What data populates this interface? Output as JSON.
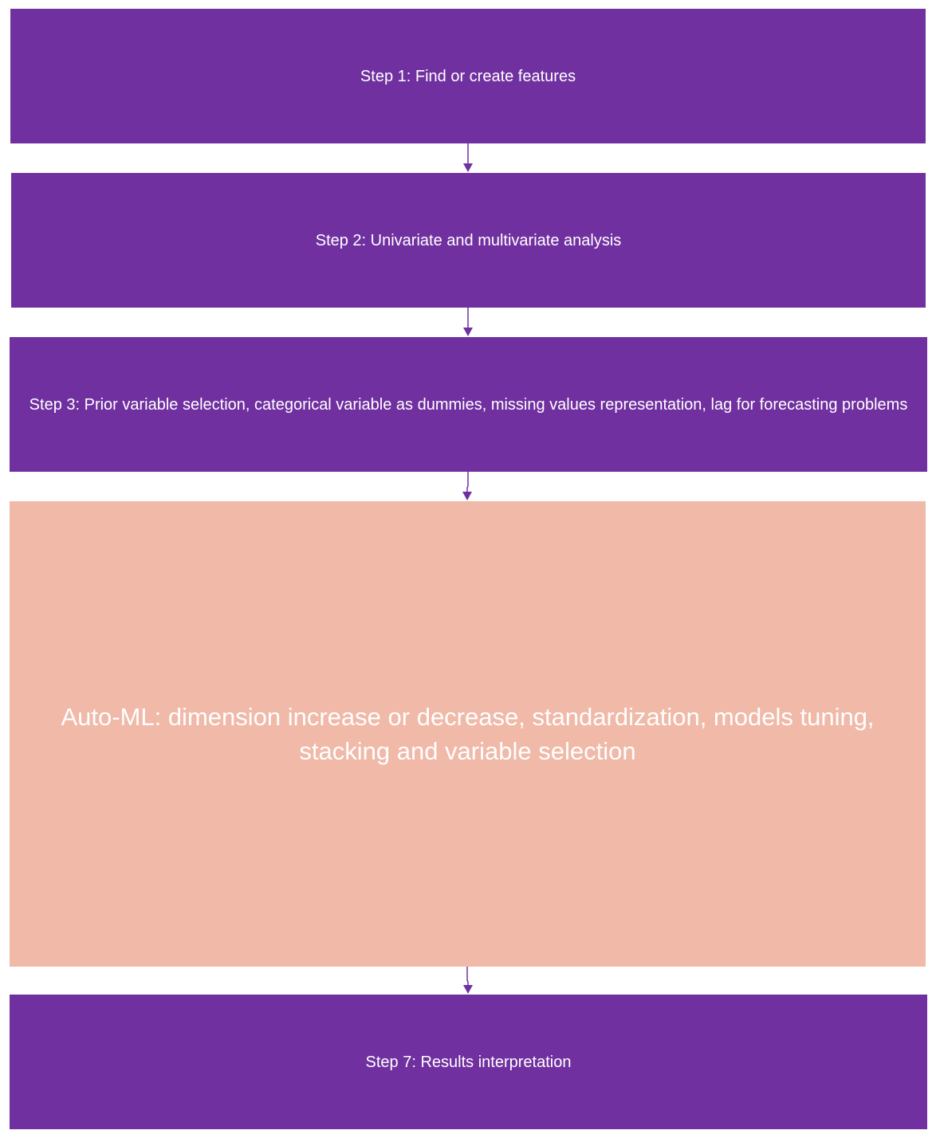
{
  "flow": {
    "steps": [
      {
        "label": "Step 1: Find or create features"
      },
      {
        "label": "Step 2: Univariate and multivariate analysis"
      },
      {
        "label": "Step 3: Prior variable selection, categorical variable as dummies, missing values representation, lag for forecasting problems"
      },
      {
        "label": "Auto-ML: dimension increase or decrease, standardization, models tuning, stacking and variable selection"
      },
      {
        "label": "Step 7: Results interpretation"
      }
    ]
  },
  "colors": {
    "step_fill": "#7030a0",
    "automl_fill": "#f0b9a8",
    "text": "#ffffff",
    "arrow": "#7030a0"
  }
}
